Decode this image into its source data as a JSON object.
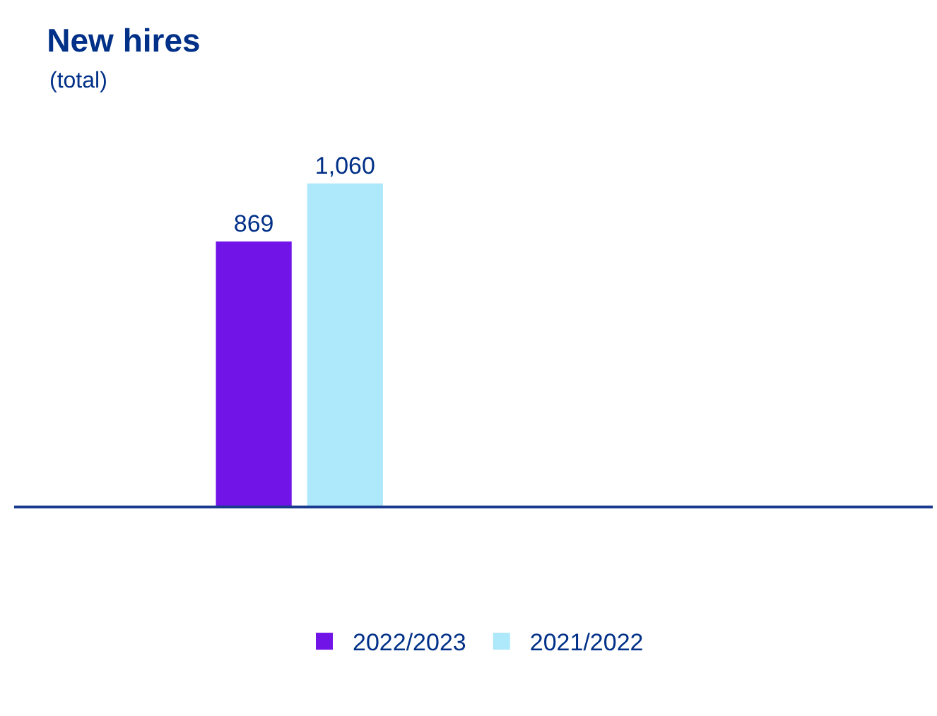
{
  "chart_data": {
    "type": "bar",
    "title": "New hires",
    "subtitle": "(total)",
    "categories": [
      null
    ],
    "series": [
      {
        "name": "2022/2023",
        "color": "#7014e8",
        "values": [
          869
        ],
        "value_labels": [
          "869"
        ]
      },
      {
        "name": "2021/2022",
        "color": "#aee8fb",
        "values": [
          1060
        ],
        "value_labels": [
          "1,060"
        ]
      }
    ],
    "legend": "bottom",
    "tick_labels": false
  }
}
